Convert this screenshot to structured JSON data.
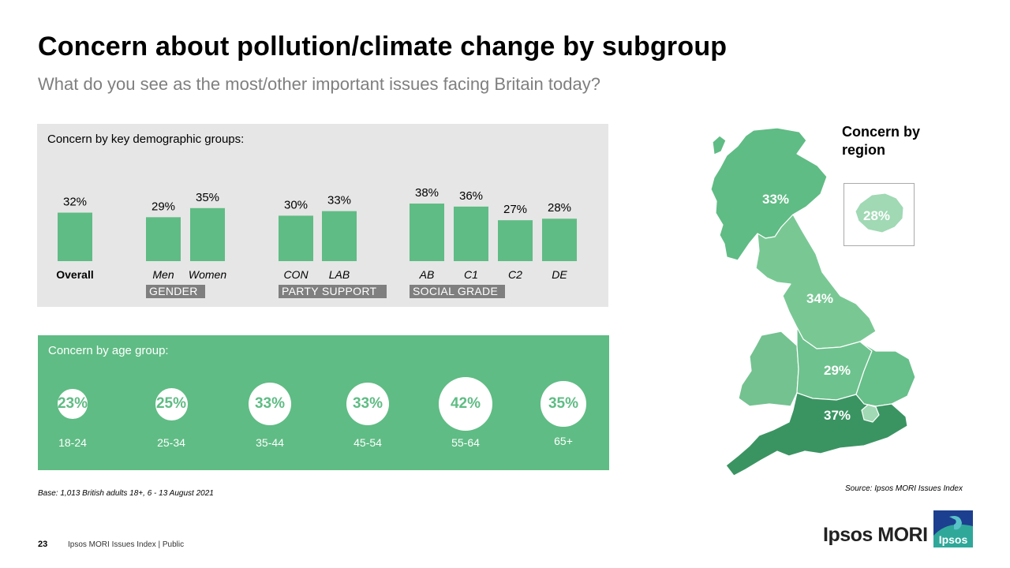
{
  "header": {
    "title": "Concern about pollution/climate change by subgroup",
    "subtitle": "What do you see as the most/other important issues facing Britain today?"
  },
  "colors": {
    "accent": "#5fbc84",
    "tag_bg": "#7f7f7f",
    "panel_bg": "#e6e6e6"
  },
  "demographics": {
    "heading": "Concern by key demographic  groups:"
  },
  "age": {
    "heading": "Concern by age group:"
  },
  "chart_data": [
    {
      "type": "bar",
      "heading": "Concern by key demographic  groups:",
      "categories": [
        "Overall",
        "Men",
        "Women",
        "CON",
        "LAB",
        "AB",
        "C1",
        "C2",
        "DE"
      ],
      "values": [
        32,
        29,
        35,
        30,
        33,
        38,
        36,
        27,
        28
      ],
      "value_labels": [
        "32%",
        "29%",
        "35%",
        "30%",
        "33%",
        "38%",
        "36%",
        "27%",
        "28%"
      ],
      "groups": [
        {
          "label": "",
          "members": [
            "Overall"
          ]
        },
        {
          "label": "GENDER",
          "members": [
            "Men",
            "Women"
          ]
        },
        {
          "label": "PARTY SUPPORT",
          "members": [
            "CON",
            "LAB"
          ]
        },
        {
          "label": "SOCIAL GRADE",
          "members": [
            "AB",
            "C1",
            "C2",
            "DE"
          ]
        }
      ],
      "color": "#5fbc84"
    },
    {
      "type": "bubble",
      "heading": "Concern by age group:",
      "categories": [
        "18-24",
        "25-34",
        "35-44",
        "45-54",
        "55-64",
        "65+"
      ],
      "values": [
        23,
        25,
        33,
        33,
        42,
        35
      ],
      "value_labels": [
        "23%",
        "25%",
        "33%",
        "33%",
        "42%",
        "35%"
      ]
    },
    {
      "type": "map",
      "title": "Concern by region",
      "regions": [
        {
          "name": "Scotland",
          "label": "33%",
          "value": 33,
          "color": "#5fbc84"
        },
        {
          "name": "North of England",
          "label": "34%",
          "value": 34,
          "color": "#79c894"
        },
        {
          "name": "Wales",
          "label": "",
          "value": null,
          "color": "#73c290"
        },
        {
          "name": "Midlands",
          "label": "29%",
          "value": 29,
          "color": "#6ec28e"
        },
        {
          "name": "East of England",
          "label": "",
          "value": null,
          "color": "#67bf89"
        },
        {
          "name": "South of England",
          "label": "37%",
          "value": 37,
          "color": "#3a9462"
        },
        {
          "name": "London",
          "label": "28%",
          "value": 28,
          "color": "#a0d9b4"
        }
      ]
    }
  ],
  "footer": {
    "base": "Base: 1,013 British adults 18+, 6 - 13 August 2021",
    "source": "Source: Ipsos MORI Issues Index",
    "page": "23",
    "text": "Ipsos MORI  Issues Index  |  Public",
    "brand": "Ipsos MORI",
    "logo_text": "Ipsos"
  }
}
